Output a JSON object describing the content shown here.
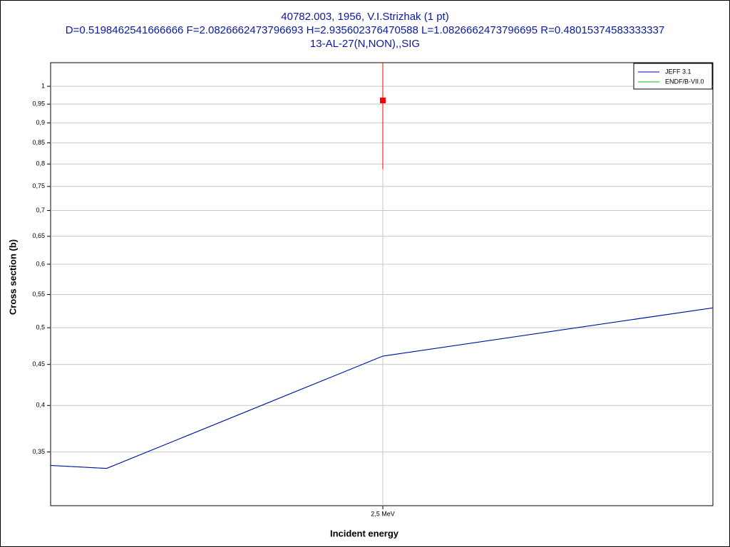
{
  "chart_data": {
    "type": "line",
    "title": [
      "40782.003, 1956, V.I.Strizhak (1 pt)",
      "D=0.5198462541666666 F=2.0826662473796693 H=2.935602376470588 L=1.0826662473796695 R=0.48015374583333337",
      "13-AL-27(N,NON),,SIG"
    ],
    "x_label": "Incident energy",
    "y_label": "Cross section (b)",
    "xlim": [
      1.872,
      3.124
    ],
    "ylim": [
      0.3,
      1.07
    ],
    "log_y": true,
    "grid": true,
    "legend": "top-right",
    "xticks": [
      {
        "value": 2.5,
        "label": "2,5 MeV"
      }
    ],
    "yticks": [
      {
        "value": 0.35,
        "label": "0,35"
      },
      {
        "value": 0.4,
        "label": "0,4"
      },
      {
        "value": 0.45,
        "label": "0,45"
      },
      {
        "value": 0.5,
        "label": "0,5"
      },
      {
        "value": 0.55,
        "label": "0,55"
      },
      {
        "value": 0.6,
        "label": "0,6"
      },
      {
        "value": 0.65,
        "label": "0,65"
      },
      {
        "value": 0.7,
        "label": "0,7"
      },
      {
        "value": 0.75,
        "label": "0,75"
      },
      {
        "value": 0.8,
        "label": "0,8"
      },
      {
        "value": 0.85,
        "label": "0,85"
      },
      {
        "value": 0.9,
        "label": "0,9"
      },
      {
        "value": 0.95,
        "label": "0,95"
      },
      1
    ],
    "series": [
      {
        "name": "ENDF/B-VII.0",
        "color": "#00c000",
        "x": [
          1.872,
          1.978,
          2.5,
          3.124
        ],
        "values": [
          0.3367,
          0.3339,
          0.4609,
          0.5294
        ]
      },
      {
        "name": "JEFF 3.1",
        "color": "#0000c0",
        "x": [
          1.872,
          1.978,
          2.5,
          3.124
        ],
        "values": [
          0.3367,
          0.3339,
          0.4609,
          0.5294
        ]
      }
    ],
    "points": {
      "color": "#ff0000",
      "x": [
        2.5
      ],
      "values": [
        0.96
      ],
      "errors": [
        0.172
      ]
    }
  }
}
